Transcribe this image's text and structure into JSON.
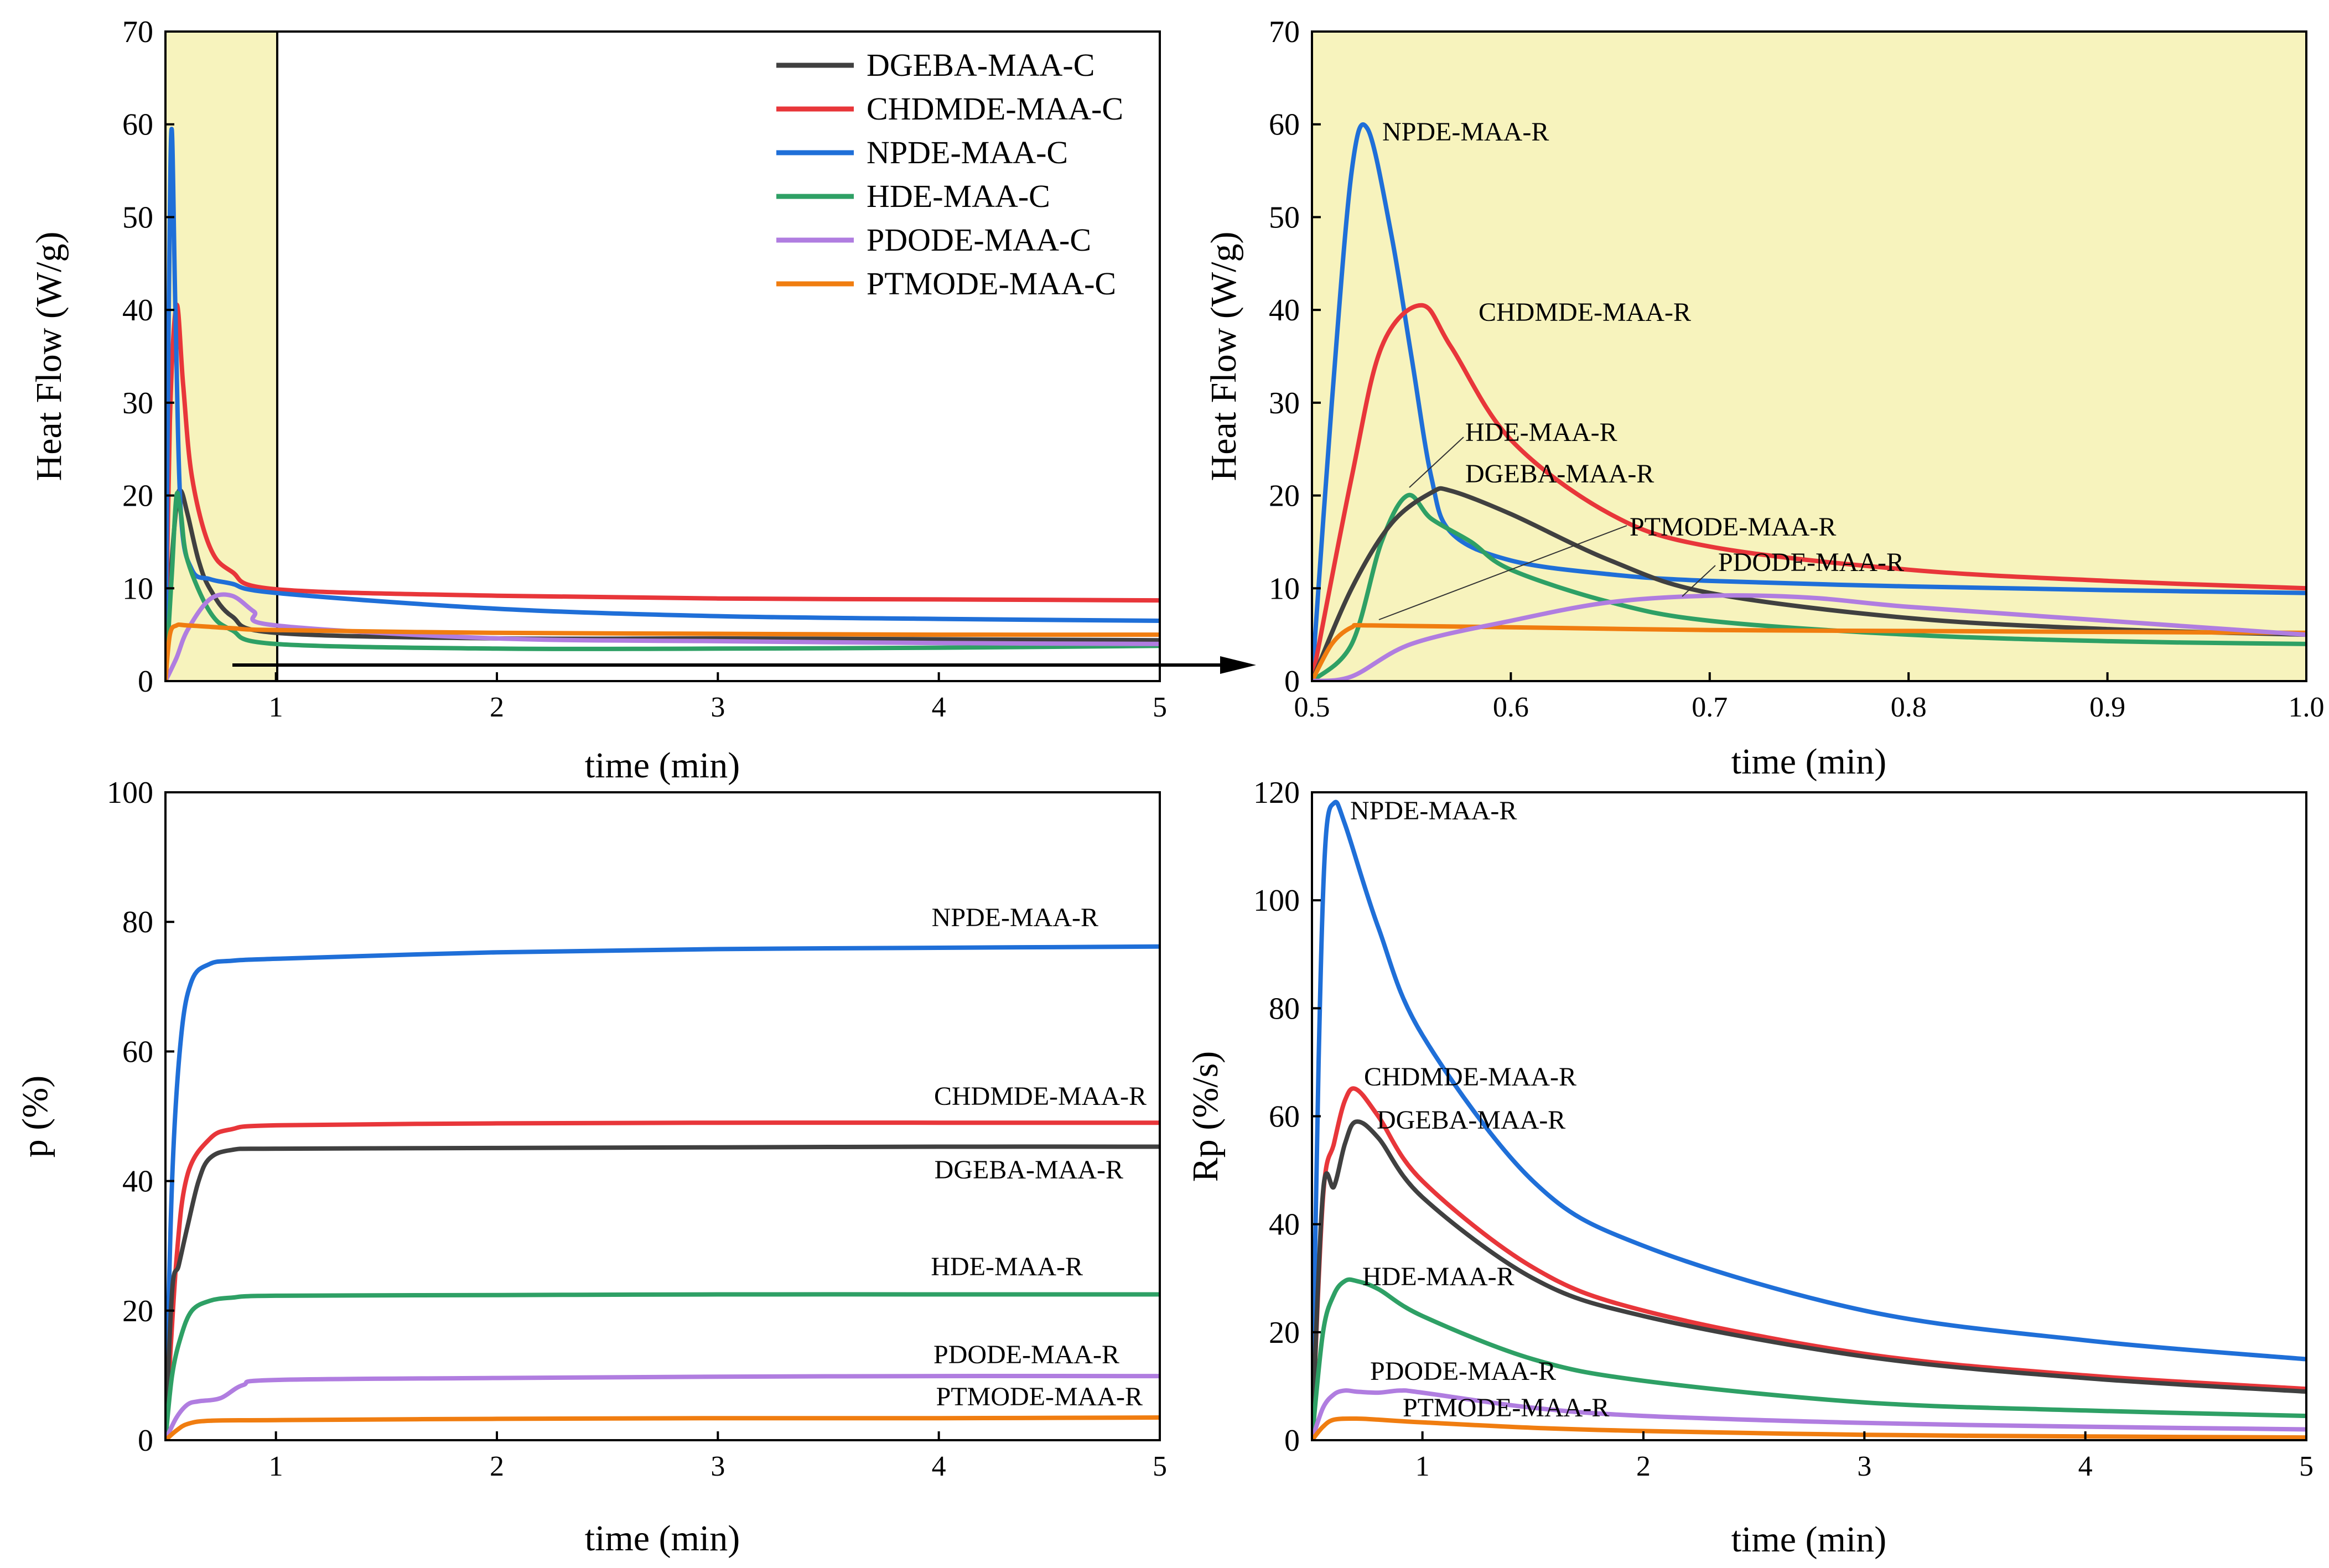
{
  "colors": {
    "DGEBA": "#404040",
    "CHDMDE": "#e8363a",
    "NPDE": "#1f6fd8",
    "HDE": "#2ea065",
    "PDODE": "#b07de0",
    "PTMODE": "#f07d10",
    "highlight": "#f7f3bd"
  },
  "chart_data": [
    {
      "id": "a",
      "type": "line",
      "xlabel": "time (min)",
      "ylabel": "Heat Flow (W/g)",
      "xlim": [
        0.5,
        5
      ],
      "ylim": [
        0,
        70
      ],
      "xticks": [
        1,
        2,
        3,
        4,
        5
      ],
      "yticks": [
        0,
        10,
        20,
        30,
        40,
        50,
        60,
        70
      ],
      "highlight_x_range": [
        0.5,
        1
      ],
      "legend_position": "top-right",
      "legend": [
        "DGEBA-MAA-C",
        "CHDMDE-MAA-C",
        "NPDE-MAA-C",
        "HDE-MAA-C",
        "PDODE-MAA-C",
        "PTMODE-MAA-C"
      ],
      "series": [
        {
          "name": "DGEBA-MAA-C",
          "color_key": "DGEBA",
          "x": [
            0.5,
            0.52,
            0.55,
            0.57,
            0.6,
            0.65,
            0.7,
            0.8,
            1,
            2,
            3,
            4,
            5
          ],
          "y": [
            0,
            10,
            19,
            20.5,
            18,
            13,
            10,
            7,
            5.2,
            4.6,
            4.6,
            4.5,
            4.4
          ]
        },
        {
          "name": "CHDMDE-MAA-C",
          "color_key": "CHDMDE",
          "x": [
            0.5,
            0.52,
            0.55,
            0.58,
            0.62,
            0.7,
            0.8,
            1,
            2,
            3,
            4,
            5
          ],
          "y": [
            0,
            28,
            40.5,
            32,
            22,
            14.5,
            11.8,
            9.9,
            9.2,
            8.9,
            8.8,
            8.7
          ]
        },
        {
          "name": "NPDE-MAA-C",
          "color_key": "NPDE",
          "x": [
            0.5,
            0.515,
            0.528,
            0.545,
            0.57,
            0.62,
            0.7,
            0.8,
            1,
            2,
            3,
            4,
            5
          ],
          "y": [
            0,
            40,
            59.5,
            40,
            18,
            12,
            11,
            10.5,
            9.5,
            7.8,
            7,
            6.7,
            6.5
          ]
        },
        {
          "name": "HDE-MAA-C",
          "color_key": "HDE",
          "x": [
            0.5,
            0.53,
            0.55,
            0.57,
            0.6,
            0.7,
            0.8,
            1,
            2,
            3,
            4,
            5
          ],
          "y": [
            0,
            12,
            20,
            18,
            13,
            7.5,
            5.5,
            4,
            3.5,
            3.5,
            3.6,
            3.8
          ]
        },
        {
          "name": "PDODE-MAA-C",
          "color_key": "PDODE",
          "x": [
            0.5,
            0.55,
            0.6,
            0.7,
            0.8,
            0.9,
            1,
            2,
            3,
            4,
            5
          ],
          "y": [
            0,
            2.5,
            5.5,
            8.8,
            9.2,
            7.5,
            6,
            4.6,
            4.3,
            4.1,
            4
          ]
        },
        {
          "name": "PTMODE-MAA-C",
          "color_key": "PTMODE",
          "x": [
            0.5,
            0.52,
            0.55,
            0.6,
            0.8,
            1,
            2,
            3,
            4,
            5
          ],
          "y": [
            0,
            5,
            6,
            6,
            5.7,
            5.5,
            5.2,
            5.1,
            5,
            5
          ]
        }
      ]
    },
    {
      "id": "b",
      "type": "line",
      "xlabel": "time (min)",
      "ylabel": "Heat Flow (W/g)",
      "xlim": [
        0.5,
        1.0
      ],
      "ylim": [
        0,
        70
      ],
      "xticks": [
        "0.5",
        "0.6",
        "0.7",
        "0.8",
        "0.9",
        "1.0"
      ],
      "yticks": [
        0,
        10,
        20,
        30,
        40,
        50,
        60,
        70
      ],
      "labels": [
        "NPDE-MAA-R",
        "CHDMDE-MAA-R",
        "HDE-MAA-R",
        "DGEBA-MAA-R",
        "PTMODE-MAA-R",
        "PDODE-MAA-R"
      ],
      "series": [
        {
          "name": "NPDE-MAA-R",
          "color_key": "NPDE",
          "x": [
            0.5,
            0.51,
            0.52,
            0.528,
            0.54,
            0.55,
            0.56,
            0.57,
            0.6,
            0.65,
            0.7,
            0.8,
            0.9,
            1.0
          ],
          "y": [
            0,
            30,
            55,
            59.5,
            48,
            35,
            22,
            16,
            13,
            11.5,
            10.8,
            10.2,
            9.8,
            9.5
          ]
        },
        {
          "name": "CHDMDE-MAA-R",
          "color_key": "CHDMDE",
          "x": [
            0.5,
            0.52,
            0.535,
            0.555,
            0.57,
            0.6,
            0.65,
            0.7,
            0.8,
            0.9,
            1.0
          ],
          "y": [
            0,
            22,
            36,
            40.5,
            36,
            26,
            18,
            14.5,
            12,
            10.8,
            10
          ]
        },
        {
          "name": "HDE-MAA-R",
          "color_key": "HDE",
          "x": [
            0.5,
            0.52,
            0.535,
            0.548,
            0.56,
            0.58,
            0.6,
            0.65,
            0.7,
            0.8,
            0.9,
            1.0
          ],
          "y": [
            0,
            4,
            15,
            20,
            17.5,
            15,
            12,
            8.5,
            6.5,
            5,
            4.3,
            4
          ]
        },
        {
          "name": "DGEBA-MAA-R",
          "color_key": "DGEBA",
          "x": [
            0.5,
            0.52,
            0.54,
            0.56,
            0.57,
            0.6,
            0.65,
            0.7,
            0.8,
            0.9,
            1.0
          ],
          "y": [
            0,
            10,
            17,
            20.3,
            20.5,
            18,
            13,
            9.5,
            6.8,
            5.6,
            5
          ]
        },
        {
          "name": "PTMODE-MAA-R",
          "color_key": "PTMODE",
          "x": [
            0.5,
            0.51,
            0.52,
            0.53,
            0.6,
            0.7,
            0.8,
            0.9,
            1.0
          ],
          "y": [
            0,
            4,
            5.8,
            6,
            5.8,
            5.5,
            5.4,
            5.3,
            5.2
          ]
        },
        {
          "name": "PDODE-MAA-R",
          "color_key": "PDODE",
          "x": [
            0.5,
            0.52,
            0.55,
            0.6,
            0.65,
            0.7,
            0.75,
            0.8,
            0.9,
            1.0
          ],
          "y": [
            0,
            0.5,
            4,
            6.5,
            8.5,
            9.2,
            9,
            8,
            6.5,
            5
          ]
        }
      ]
    },
    {
      "id": "c",
      "type": "line",
      "xlabel": "time (min)",
      "ylabel": "p (%)",
      "xlim": [
        0.5,
        5
      ],
      "ylim": [
        0,
        100
      ],
      "xticks": [
        1,
        2,
        3,
        4,
        5
      ],
      "yticks": [
        0,
        20,
        40,
        60,
        80,
        100
      ],
      "labels": [
        "NPDE-MAA-R",
        "CHDMDE-MAA-R",
        "DGEBA-MAA-R",
        "HDE-MAA-R",
        "PDODE-MAA-R",
        "PTMODE-MAA-R"
      ],
      "series": [
        {
          "name": "NPDE-MAA-R",
          "color_key": "NPDE",
          "x": [
            0.5,
            0.53,
            0.57,
            0.62,
            0.7,
            0.8,
            1,
            2,
            3,
            4,
            5
          ],
          "y": [
            0,
            40,
            62,
            71,
            73.5,
            74,
            74.3,
            75.3,
            75.8,
            76,
            76.2
          ]
        },
        {
          "name": "CHDMDE-MAA-R",
          "color_key": "CHDMDE",
          "x": [
            0.5,
            0.55,
            0.6,
            0.7,
            0.8,
            1,
            2,
            3,
            4,
            5
          ],
          "y": [
            0,
            28,
            41,
            46.5,
            48,
            48.6,
            48.9,
            49,
            49,
            49
          ]
        },
        {
          "name": "DGEBA-MAA-R",
          "color_key": "DGEBA",
          "x": [
            0.5,
            0.53,
            0.56,
            0.6,
            0.65,
            0.7,
            0.8,
            1,
            2,
            3,
            4,
            5
          ],
          "y": [
            0,
            23,
            27,
            33,
            40,
            43.5,
            44.8,
            45,
            45.1,
            45.2,
            45.3,
            45.3
          ]
        },
        {
          "name": "HDE-MAA-R",
          "color_key": "HDE",
          "x": [
            0.5,
            0.53,
            0.57,
            0.62,
            0.7,
            0.8,
            1,
            2,
            3,
            4,
            5
          ],
          "y": [
            0,
            10,
            16,
            20,
            21.5,
            22,
            22.3,
            22.4,
            22.5,
            22.5,
            22.5
          ]
        },
        {
          "name": "PDODE-MAA-R",
          "color_key": "PDODE",
          "x": [
            0.5,
            0.55,
            0.6,
            0.65,
            0.75,
            0.85,
            1,
            2,
            3,
            4,
            5
          ],
          "y": [
            0,
            3.5,
            5.5,
            6,
            6.5,
            8.5,
            9.3,
            9.6,
            9.8,
            9.9,
            9.9
          ]
        },
        {
          "name": "PTMODE-MAA-R",
          "color_key": "PTMODE",
          "x": [
            0.5,
            0.55,
            0.6,
            0.7,
            1,
            2,
            3,
            4,
            5
          ],
          "y": [
            0,
            1.5,
            2.5,
            3,
            3.1,
            3.3,
            3.4,
            3.4,
            3.5
          ]
        }
      ]
    },
    {
      "id": "d",
      "type": "line",
      "xlabel": "time (min)",
      "ylabel": "Rp (%/s)",
      "xlim": [
        0.5,
        5
      ],
      "ylim": [
        0,
        120
      ],
      "xticks": [
        1,
        2,
        3,
        4,
        5
      ],
      "yticks": [
        0,
        20,
        40,
        60,
        80,
        100,
        120
      ],
      "labels": [
        "NPDE-MAA-R",
        "CHDMDE-MAA-R",
        "DGEBA-MAA-R",
        "HDE-MAA-R",
        "PDODE-MAA-R",
        "PTMODE-MAA-R"
      ],
      "series": [
        {
          "name": "NPDE-MAA-R",
          "color_key": "NPDE",
          "x": [
            0.5,
            0.53,
            0.56,
            0.6,
            0.65,
            0.8,
            1,
            1.5,
            2,
            3,
            4,
            5
          ],
          "y": [
            0,
            70,
            110,
            118,
            114,
            95,
            75,
            48,
            36,
            24,
            18.5,
            15
          ]
        },
        {
          "name": "CHDMDE-MAA-R",
          "color_key": "CHDMDE",
          "x": [
            0.5,
            0.55,
            0.6,
            0.65,
            0.7,
            0.8,
            1,
            1.5,
            2,
            3,
            4,
            5
          ],
          "y": [
            0,
            45,
            55,
            63,
            65,
            60,
            48,
            32,
            24,
            16,
            12,
            9.5
          ]
        },
        {
          "name": "DGEBA-MAA-R",
          "color_key": "DGEBA",
          "x": [
            0.5,
            0.55,
            0.6,
            0.65,
            0.7,
            0.8,
            1,
            1.5,
            2,
            3,
            4,
            5
          ],
          "y": [
            0,
            46,
            47,
            55,
            59,
            56,
            45,
            30,
            23,
            15.5,
            11.5,
            9
          ]
        },
        {
          "name": "HDE-MAA-R",
          "color_key": "HDE",
          "x": [
            0.5,
            0.55,
            0.6,
            0.65,
            0.7,
            0.8,
            1,
            1.5,
            2,
            3,
            4,
            5
          ],
          "y": [
            0,
            20,
            27,
            29.5,
            29.5,
            28,
            23,
            15,
            11,
            7,
            5.5,
            4.5
          ]
        },
        {
          "name": "PDODE-MAA-R",
          "color_key": "PDODE",
          "x": [
            0.5,
            0.55,
            0.6,
            0.65,
            0.7,
            0.8,
            0.9,
            1,
            1.5,
            2,
            3,
            4,
            5
          ],
          "y": [
            0,
            6,
            8.5,
            9.2,
            9,
            8.8,
            9.2,
            8.8,
            6,
            4.5,
            3.2,
            2.5,
            2
          ]
        },
        {
          "name": "PTMODE-MAA-R",
          "color_key": "PTMODE",
          "x": [
            0.5,
            0.55,
            0.6,
            0.7,
            0.8,
            1,
            1.5,
            2,
            3,
            4,
            5
          ],
          "y": [
            0,
            2.5,
            3.8,
            4,
            3.8,
            3.3,
            2.3,
            1.7,
            1,
            0.7,
            0.5
          ]
        }
      ]
    }
  ]
}
